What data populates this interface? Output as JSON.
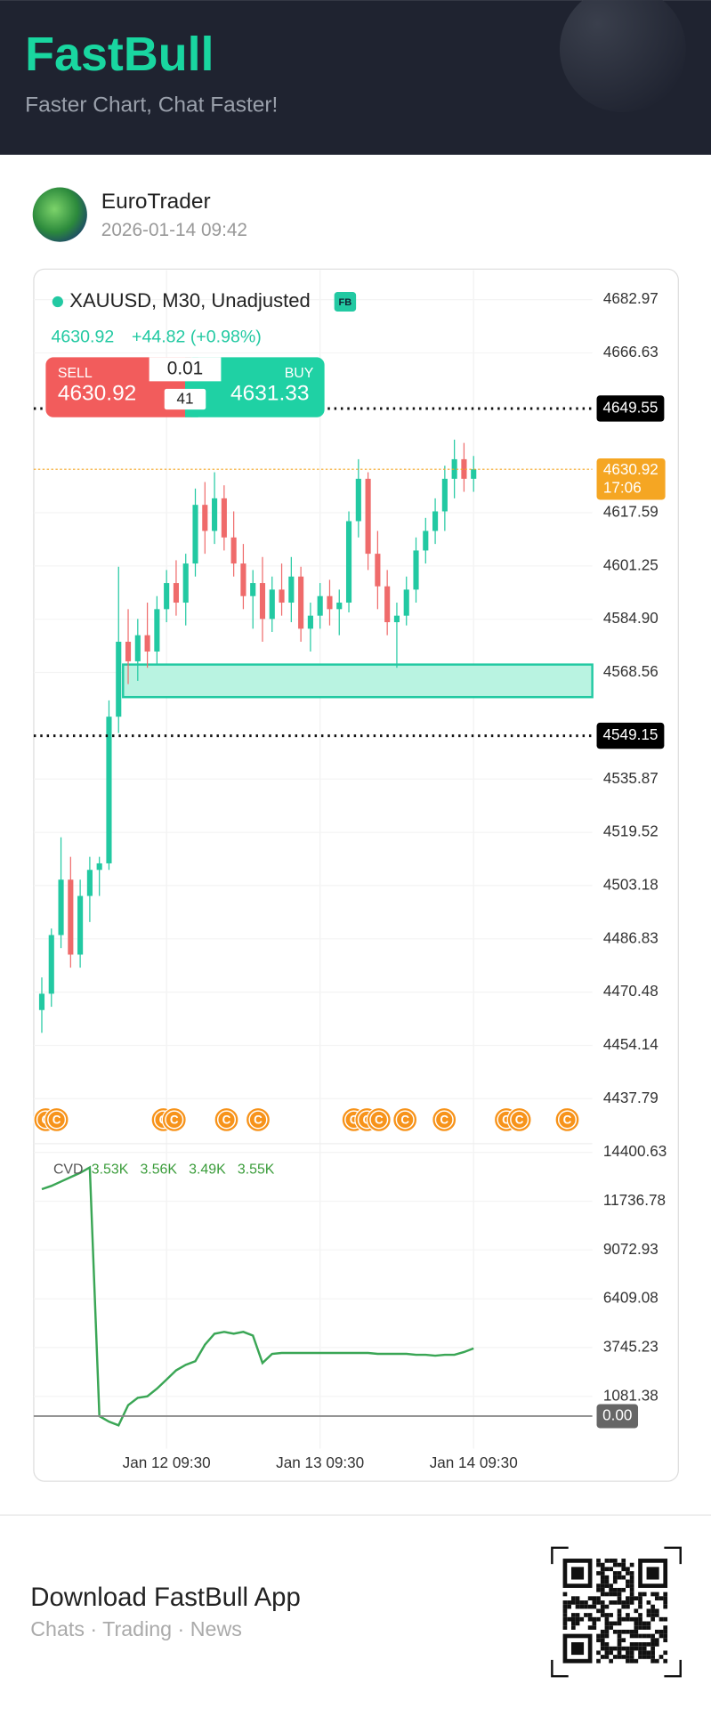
{
  "header": {
    "brand": "FastBull",
    "tagline": "Faster Chart, Chat Faster!"
  },
  "post": {
    "author": "EuroTrader",
    "time": "2026-01-14 09:42"
  },
  "chart_data": [
    {
      "type": "candlestick",
      "title": "XAUUSD, M30, Unadjusted",
      "badge": "FB",
      "quote": {
        "price": 4630.92,
        "change": "+44.82 (+0.98%)"
      },
      "trade": {
        "sell_label": "SELL",
        "sell_price": 4630.92,
        "lot": 0.01,
        "spread": 41,
        "buy_label": "BUY",
        "buy_price": 4631.33
      },
      "up_color": "#22c9a2",
      "down_color": "#ef6b6b",
      "categories": [
        null,
        null,
        null,
        null,
        null,
        null,
        null,
        null,
        null,
        null,
        null,
        null,
        null,
        "Jan 12 09:30",
        null,
        null,
        null,
        null,
        null,
        null,
        null,
        null,
        null,
        null,
        null,
        null,
        null,
        null,
        null,
        "Jan 13 09:30",
        null,
        null,
        null,
        null,
        null,
        null,
        null,
        null,
        null,
        null,
        null,
        null,
        null,
        null,
        null,
        "Jan 14 09:30"
      ],
      "open": [
        4465,
        4470,
        4488,
        4505,
        4482,
        4500,
        4508,
        4510,
        4555,
        4578,
        4572,
        4580,
        4575,
        4588,
        4596,
        4590,
        4602,
        4620,
        4612,
        4622,
        4610,
        4602,
        4592,
        4596,
        4585,
        4594,
        4590,
        4598,
        4582,
        4586,
        4592,
        4588,
        4590,
        4615,
        4628,
        4605,
        4595,
        4584,
        4586,
        4594,
        4606,
        4612,
        4618,
        4628,
        4634,
        4628
      ],
      "high": [
        4475,
        4490,
        4518,
        4512,
        4505,
        4512,
        4512,
        4560,
        4601,
        4588,
        4585,
        4590,
        4592,
        4600,
        4603,
        4605,
        4625,
        4627,
        4630,
        4626,
        4618,
        4608,
        4600,
        4604,
        4598,
        4602,
        4604,
        4601,
        4590,
        4596,
        4597,
        4594,
        4618,
        4634,
        4630,
        4612,
        4600,
        4590,
        4598,
        4610,
        4616,
        4622,
        4632,
        4640,
        4639,
        4635
      ],
      "low": [
        4458,
        4466,
        4484,
        4478,
        4478,
        4492,
        4500,
        4508,
        4550,
        4565,
        4566,
        4570,
        4571,
        4584,
        4586,
        4583,
        4598,
        4605,
        4608,
        4606,
        4598,
        4588,
        4582,
        4578,
        4581,
        4586,
        4584,
        4578,
        4575,
        4582,
        4583,
        4580,
        4587,
        4610,
        4600,
        4588,
        4580,
        4570,
        4583,
        4590,
        4602,
        4608,
        4612,
        4622,
        4624,
        4624
      ],
      "close": [
        4470,
        4488,
        4505,
        4482,
        4500,
        4508,
        4510,
        4555,
        4578,
        4572,
        4580,
        4575,
        4588,
        4596,
        4590,
        4602,
        4620,
        4612,
        4622,
        4610,
        4602,
        4592,
        4596,
        4585,
        4594,
        4590,
        4598,
        4582,
        4586,
        4592,
        4588,
        4590,
        4615,
        4628,
        4605,
        4595,
        4584,
        4586,
        4594,
        4606,
        4612,
        4618,
        4628,
        4634,
        4628,
        4630.92
      ],
      "countdown": "17:06",
      "ylim": [
        4426,
        4692
      ],
      "yticks": [
        4682.97,
        4666.63,
        4617.59,
        4601.25,
        {
          "value": 4584.9,
          "label": "4584.90"
        },
        4568.56,
        4535.87,
        4519.52,
        4503.18,
        4486.83,
        4470.48,
        4454.14,
        4437.79
      ],
      "price_lines": [
        4649.55,
        4549.15
      ],
      "zone": [
        4561,
        4571
      ],
      "event_icon": "C"
    },
    {
      "type": "line",
      "name": "CVD",
      "readouts": [
        "3.53K",
        "3.56K",
        "3.49K",
        "3.55K"
      ],
      "color": "#3aa655",
      "values": [
        12391,
        12570,
        12807,
        13045,
        13282,
        13580,
        0,
        -300,
        -500,
        600,
        1000,
        1081,
        1500,
        2000,
        2500,
        2800,
        3000,
        3900,
        4500,
        4600,
        4500,
        4600,
        4400,
        2900,
        3400,
        3450,
        3450,
        3450,
        3450,
        3450,
        3450,
        3450,
        3450,
        3450,
        3450,
        3400,
        3400,
        3400,
        3400,
        3350,
        3350,
        3300,
        3350,
        3350,
        3500,
        3700
      ],
      "ylim": [
        -1773,
        14876
      ],
      "yticks": [
        14400.63,
        11736.78,
        9072.93,
        6409.08,
        3745.23,
        1081.38
      ],
      "zero_line": {
        "value": 0,
        "label": "0.00"
      }
    }
  ],
  "footer": {
    "title": "Download FastBull App",
    "subtitle": "Chats · Trading · News"
  }
}
